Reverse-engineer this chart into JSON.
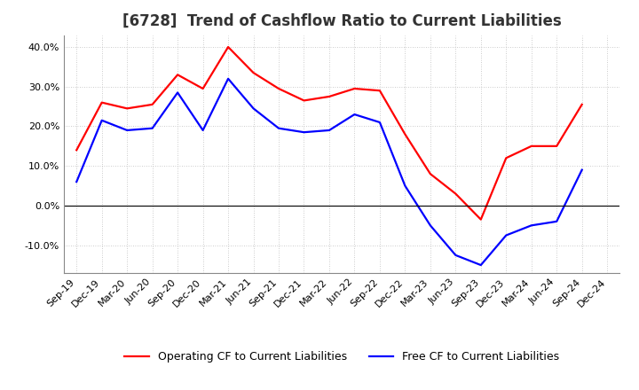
{
  "title": "[6728]  Trend of Cashflow Ratio to Current Liabilities",
  "x_labels": [
    "Sep-19",
    "Dec-19",
    "Mar-20",
    "Jun-20",
    "Sep-20",
    "Dec-20",
    "Mar-21",
    "Jun-21",
    "Sep-21",
    "Dec-21",
    "Mar-22",
    "Jun-22",
    "Sep-22",
    "Dec-22",
    "Mar-23",
    "Jun-23",
    "Sep-23",
    "Dec-23",
    "Mar-24",
    "Jun-24",
    "Sep-24",
    "Dec-24"
  ],
  "operating_cf": [
    14.0,
    26.0,
    24.5,
    25.5,
    33.0,
    29.5,
    40.0,
    33.5,
    29.5,
    26.5,
    27.5,
    29.5,
    29.0,
    18.0,
    8.0,
    3.0,
    -3.5,
    12.0,
    15.0,
    15.0,
    25.5,
    null
  ],
  "free_cf": [
    6.0,
    21.5,
    19.0,
    19.5,
    28.5,
    19.0,
    32.0,
    24.5,
    19.5,
    18.5,
    19.0,
    23.0,
    21.0,
    5.0,
    -5.0,
    -12.5,
    -15.0,
    -7.5,
    -5.0,
    -4.0,
    9.0,
    null
  ],
  "operating_color": "#ff0000",
  "free_color": "#0000ff",
  "background_color": "#ffffff",
  "grid_color": "#bbbbbb",
  "ylim": [
    -17,
    43
  ],
  "yticks": [
    -10,
    0,
    10,
    20,
    30,
    40
  ],
  "title_fontsize": 12,
  "legend_fontsize": 9,
  "tick_fontsize": 8,
  "line_width": 1.6
}
